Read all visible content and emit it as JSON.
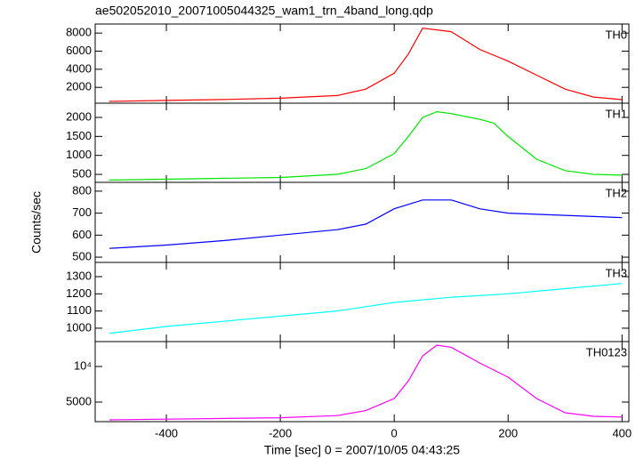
{
  "title": "ae502052010_20071005044325_wam1_trn_4band_long.qdp",
  "ylabel": "Counts/sec",
  "chart_data": [
    {
      "type": "line",
      "x": [
        -500,
        -400,
        -300,
        -200,
        -100,
        -50,
        0,
        25,
        50,
        100,
        150,
        200,
        250,
        300,
        350,
        400
      ],
      "series": [
        {
          "name": "TH0",
          "color": "#ff0000",
          "values": [
            450,
            550,
            650,
            800,
            1100,
            1800,
            3560,
            5700,
            8550,
            8150,
            6200,
            4900,
            3350,
            1800,
            930,
            640
          ]
        }
      ],
      "xlim": [
        -525,
        412
      ],
      "xticks": [
        -400,
        -200,
        0,
        200,
        400
      ],
      "ylim": [
        250,
        9000
      ],
      "yticks": [
        2000,
        4000,
        6000,
        8000
      ]
    },
    {
      "type": "line",
      "x": [
        -500,
        -200,
        -100,
        -50,
        0,
        25,
        50,
        75,
        100,
        150,
        175,
        200,
        250,
        300,
        350,
        400
      ],
      "series": [
        {
          "name": "TH1",
          "color": "#00e600",
          "values": [
            350,
            420,
            500,
            650,
            1050,
            1500,
            2000,
            2150,
            2100,
            1950,
            1850,
            1500,
            900,
            600,
            500,
            480
          ]
        }
      ],
      "xlim": [
        -525,
        412
      ],
      "xticks": [
        -400,
        -200,
        0,
        200,
        400
      ],
      "ylim": [
        290,
        2375
      ],
      "yticks": [
        500,
        1000,
        1500,
        2000
      ]
    },
    {
      "type": "line",
      "x": [
        -500,
        -400,
        -300,
        -200,
        -100,
        -50,
        0,
        50,
        100,
        150,
        200,
        300,
        400
      ],
      "series": [
        {
          "name": "TH2",
          "color": "#0000ff",
          "values": [
            540,
            555,
            575,
            600,
            625,
            650,
            720,
            760,
            760,
            720,
            700,
            690,
            680
          ]
        }
      ],
      "xlim": [
        -525,
        412
      ],
      "xticks": [
        -400,
        -200,
        0,
        200,
        400
      ],
      "ylim": [
        476,
        840
      ],
      "yticks": [
        500,
        600,
        700,
        800
      ]
    },
    {
      "type": "line",
      "x": [
        -500,
        -400,
        -300,
        -200,
        -100,
        0,
        100,
        200,
        300,
        400
      ],
      "series": [
        {
          "name": "TH3",
          "color": "#00ffff",
          "values": [
            970,
            1010,
            1040,
            1070,
            1100,
            1150,
            1180,
            1200,
            1230,
            1260
          ]
        }
      ],
      "xlim": [
        -525,
        412
      ],
      "xticks": [
        -400,
        -200,
        0,
        200,
        400
      ],
      "ylim": [
        922,
        1383
      ],
      "yticks": [
        1000,
        1100,
        1200,
        1300
      ]
    },
    {
      "type": "line",
      "x": [
        -500,
        -200,
        -100,
        -50,
        0,
        25,
        50,
        75,
        100,
        150,
        200,
        250,
        300,
        350,
        400
      ],
      "series": [
        {
          "name": "TH0123",
          "color": "#ff00ff",
          "values": [
            2500,
            2800,
            3100,
            3800,
            5500,
            8000,
            11500,
            13000,
            12700,
            10500,
            8500,
            5500,
            3500,
            3000,
            2900
          ]
        }
      ],
      "xlim": [
        -525,
        412
      ],
      "xticks": [
        -400,
        -200,
        0,
        200,
        400
      ],
      "ylim": [
        2250,
        13500
      ],
      "yticks": [
        5000,
        {
          "value": 10000,
          "label": "10⁴"
        }
      ],
      "xlabel": "Time [sec] 0 = 2007/10/05 04:43:25"
    }
  ]
}
